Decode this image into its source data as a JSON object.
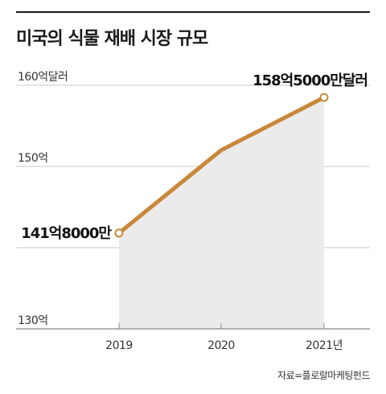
{
  "title": "미국의 식물 재배 시장 규모",
  "source": "자료=플로랄마케팅펀드",
  "colors": {
    "line": "#c8873a",
    "area": "#ebebeb",
    "grid": "#c8c8c8",
    "axis": "#888888",
    "marker_fill": "#ffffff"
  },
  "chart_data": {
    "type": "area",
    "title": "미국의 식물 재배 시장 규모",
    "xlabel": "",
    "ylabel": "",
    "categories": [
      "2019",
      "2020",
      "2021년"
    ],
    "series": [
      {
        "values": [
          141.8,
          152.0,
          158.5
        ]
      }
    ],
    "ylim": [
      130,
      160
    ],
    "yticks": [
      {
        "value": 160,
        "label": "160억달러"
      },
      {
        "value": 150,
        "label": "150억"
      },
      {
        "value": 140,
        "label": ""
      },
      {
        "value": 130,
        "label": "130억"
      }
    ],
    "annotations": [
      {
        "index": 0,
        "label": "141억8000만"
      },
      {
        "index": 2,
        "label": "158억5000만달러"
      }
    ],
    "grid": true,
    "markers": "endpoints"
  }
}
